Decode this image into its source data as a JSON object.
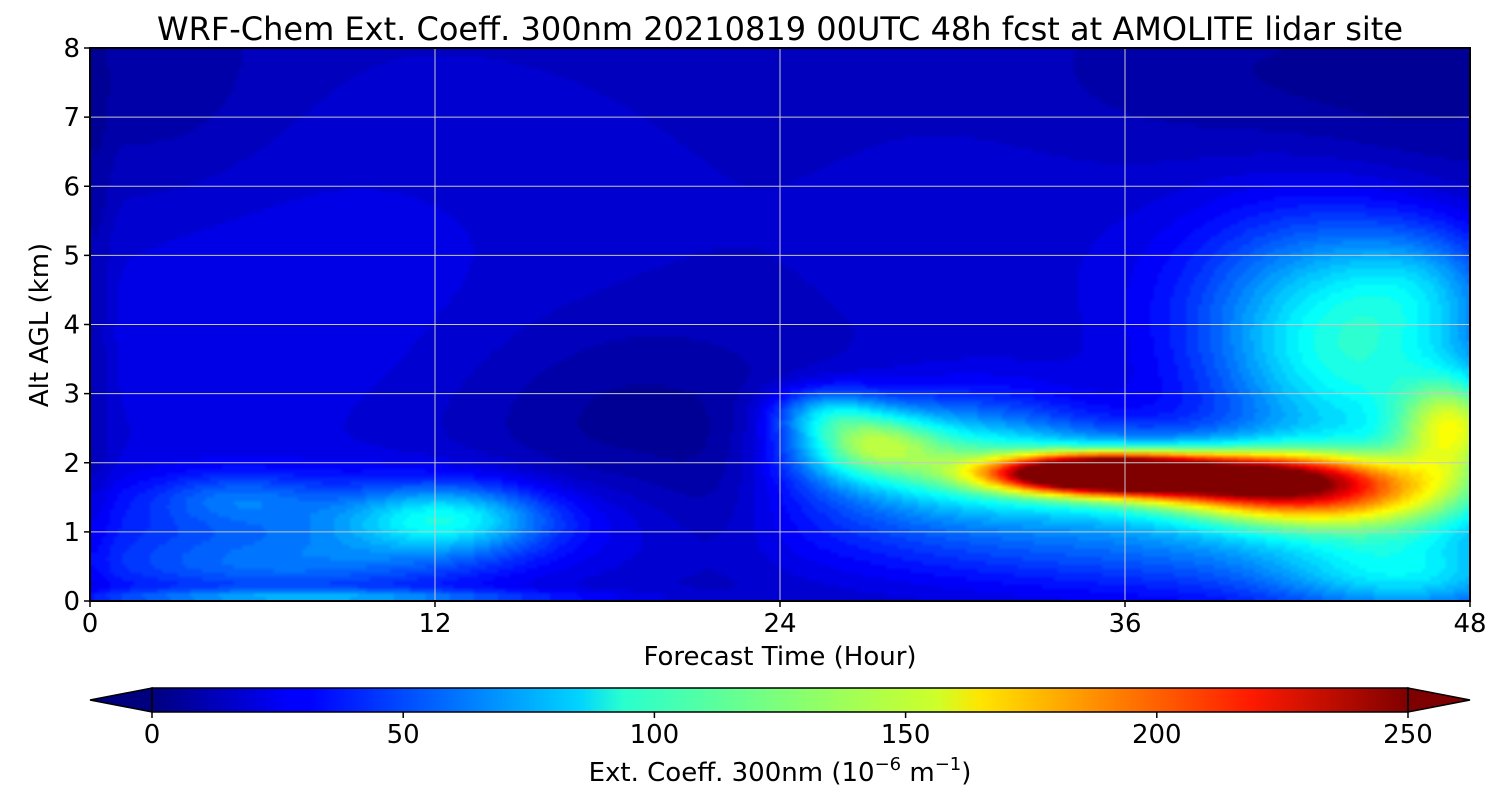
{
  "chart_data": {
    "type": "heatmap",
    "title": "WRF-Chem Ext. Coeff. 300nm  20210819 00UTC 48h fcst at AMOLITE lidar site",
    "xlabel": "Forecast Time (Hour)",
    "ylabel": "Alt AGL (km)",
    "xlim": [
      0,
      48
    ],
    "ylim": [
      0,
      8
    ],
    "x_ticks": [
      "0",
      "12",
      "24",
      "36",
      "48"
    ],
    "y_ticks": [
      "0",
      "1",
      "2",
      "3",
      "4",
      "5",
      "6",
      "7",
      "8"
    ],
    "grid": true,
    "colormap": "jet",
    "colorbar": {
      "orientation": "horizontal",
      "location": "bottom",
      "label_main": "Ext. Coeff. 300nm  (10",
      "label_exp1": "−6",
      "label_mid": " m",
      "label_exp2": "−1",
      "label_end": ")",
      "range": [
        0,
        250
      ],
      "ticks": [
        "0",
        "50",
        "100",
        "150",
        "200",
        "250"
      ],
      "extend": "both"
    },
    "background_value": 18,
    "features": [
      {
        "x": 35,
        "y": 1.85,
        "sx": 2.3,
        "sy": 0.17,
        "v": 215
      },
      {
        "x": 38.5,
        "y": 1.8,
        "sx": 3.2,
        "sy": 0.22,
        "v": 130
      },
      {
        "x": 35,
        "y": 1.85,
        "sx": 5.5,
        "sy": 0.4,
        "v": 70
      },
      {
        "x": 41.5,
        "y": 1.6,
        "sx": 3.0,
        "sy": 0.35,
        "v": 100
      },
      {
        "x": 45.5,
        "y": 1.5,
        "sx": 3.5,
        "sy": 0.45,
        "v": 70
      },
      {
        "x": 47.5,
        "y": 2.5,
        "sx": 1.4,
        "sy": 0.5,
        "v": 95
      },
      {
        "x": 44.5,
        "y": 3.0,
        "sx": 3.5,
        "sy": 1.0,
        "v": 50
      },
      {
        "x": 43.0,
        "y": 4.3,
        "sx": 3.5,
        "sy": 1.1,
        "v": 55
      },
      {
        "x": 46.5,
        "y": 4.6,
        "sx": 2.0,
        "sy": 0.6,
        "v": 25
      },
      {
        "x": 27.0,
        "y": 2.3,
        "sx": 1.8,
        "sy": 0.35,
        "v": 80
      },
      {
        "x": 25.5,
        "y": 2.75,
        "sx": 1.3,
        "sy": 0.25,
        "v": 40
      },
      {
        "x": 30.5,
        "y": 2.3,
        "sx": 3.0,
        "sy": 0.55,
        "v": 45
      },
      {
        "x": 29.0,
        "y": 1.2,
        "sx": 5.0,
        "sy": 0.6,
        "v": 22
      },
      {
        "x": 46.0,
        "y": 0.35,
        "sx": 3.5,
        "sy": 0.45,
        "v": 60
      },
      {
        "x": 38.5,
        "y": 0.9,
        "sx": 6.0,
        "sy": 0.6,
        "v": 38
      },
      {
        "x": 12.5,
        "y": 1.2,
        "sx": 2.5,
        "sy": 0.35,
        "v": 58
      },
      {
        "x": 8.0,
        "y": 1.0,
        "sx": 6.5,
        "sy": 0.55,
        "v": 32
      },
      {
        "x": 5.0,
        "y": 1.5,
        "sx": 2.0,
        "sy": 0.25,
        "v": 22
      },
      {
        "x": 6.0,
        "y": 0.45,
        "sx": 5.0,
        "sy": 0.3,
        "v": 22
      },
      {
        "x": 8.0,
        "y": 0.05,
        "sx": 6.0,
        "sy": 0.08,
        "v": 45
      },
      {
        "x": 18.5,
        "y": 2.6,
        "sx": 4.0,
        "sy": 1.1,
        "v": -12
      },
      {
        "x": 22.0,
        "y": 1.5,
        "sx": 1.6,
        "sy": 0.7,
        "v": -10
      },
      {
        "x": 2.5,
        "y": 7.3,
        "sx": 3.0,
        "sy": 1.3,
        "v": -8
      },
      {
        "x": 46.0,
        "y": 7.3,
        "sx": 4.0,
        "sy": 1.3,
        "v": -10
      },
      {
        "x": 38.0,
        "y": 7.6,
        "sx": 4.0,
        "sy": 0.8,
        "v": -6
      },
      {
        "x": 4.0,
        "y": 4.0,
        "sx": 5.0,
        "sy": 1.8,
        "v": 10
      },
      {
        "x": 13.0,
        "y": 4.8,
        "sx": 6.0,
        "sy": 2.0,
        "v": 6
      },
      {
        "x": 32.0,
        "y": 5.0,
        "sx": 5.0,
        "sy": 1.5,
        "v": 5
      },
      {
        "x": 0.2,
        "y": 4.0,
        "sx": 0.4,
        "sy": 4.0,
        "v": -8
      }
    ]
  }
}
